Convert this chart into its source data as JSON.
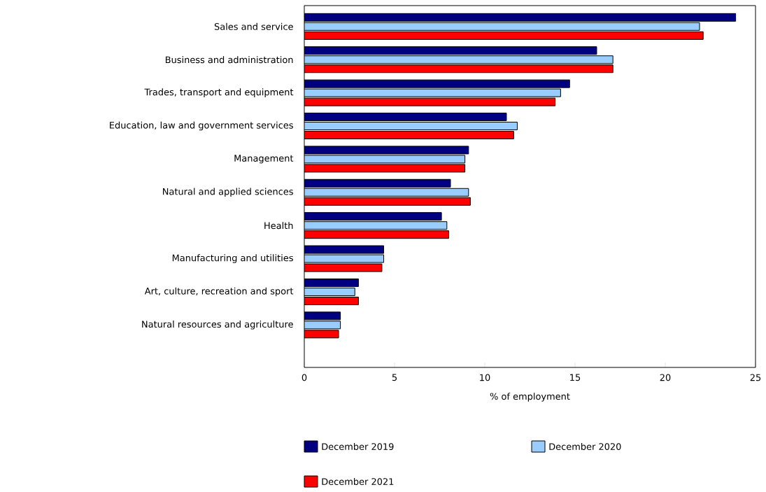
{
  "chart_data": {
    "type": "bar",
    "orientation": "horizontal",
    "xlabel": "% of employment",
    "categories": [
      "Sales and service",
      "Business and administration",
      "Trades, transport and equipment",
      "Education, law and government services",
      "Management",
      "Natural and applied sciences",
      "Health",
      "Manufacturing and utilities",
      "Art, culture, recreation and sport",
      "Natural resources and agriculture"
    ],
    "series": [
      {
        "name": "December 2019",
        "color": "#000080",
        "values": [
          23.9,
          16.2,
          14.7,
          11.2,
          9.1,
          8.1,
          7.6,
          4.4,
          3.0,
          2.0
        ]
      },
      {
        "name": "December 2020",
        "color": "#99ccff",
        "values": [
          21.9,
          17.1,
          14.2,
          11.8,
          8.9,
          9.1,
          7.9,
          4.4,
          2.8,
          2.0
        ]
      },
      {
        "name": "December 2021",
        "color": "#ff0000",
        "values": [
          22.1,
          17.1,
          13.9,
          11.6,
          8.9,
          9.2,
          8.0,
          4.3,
          3.0,
          1.9
        ]
      }
    ],
    "xlim": [
      0,
      25
    ],
    "xticks": [
      0,
      5,
      10,
      15,
      20,
      25
    ],
    "legend": "bottom"
  }
}
